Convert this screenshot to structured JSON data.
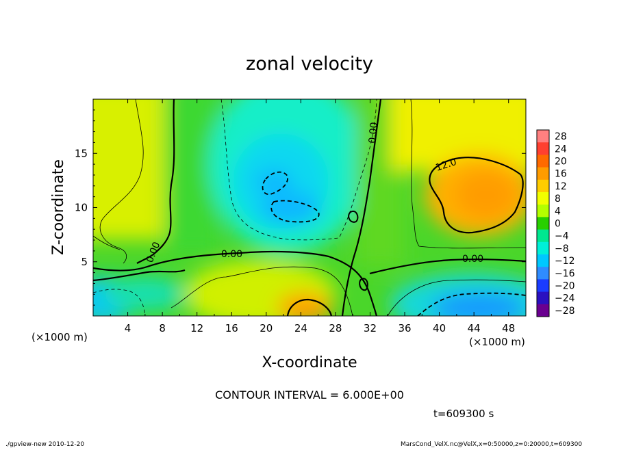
{
  "chart_data": {
    "type": "heatmap",
    "title": "zonal velocity",
    "xlabel": "X-coordinate",
    "ylabel": "Z-coordinate",
    "x_unit": "(×1000 m)",
    "x_unit_right": "(×1000 m)",
    "y_unit": "(×1000 m)",
    "xlim": [
      0,
      50
    ],
    "ylim": [
      0,
      20
    ],
    "x_ticks": [
      "4",
      "8",
      "12",
      "16",
      "20",
      "24",
      "28",
      "32",
      "36",
      "40",
      "44",
      "48"
    ],
    "y_ticks": [
      "5",
      "10",
      "15"
    ],
    "contour_interval_text": "CONTOUR INTERVAL = 6.000E+00",
    "contour_labels": [
      "0.00",
      "0.00",
      "0.00",
      "0.00",
      "12.0"
    ],
    "colorbar": {
      "labels": [
        "28",
        "24",
        "20",
        "16",
        "12",
        "8",
        "4",
        "0",
        "−4",
        "−8",
        "−12",
        "−16",
        "−20",
        "−24",
        "−28"
      ],
      "values": [
        28,
        24,
        20,
        16,
        12,
        8,
        4,
        0,
        -4,
        -8,
        -12,
        -16,
        -20,
        -24,
        -28
      ],
      "colors": [
        "#ff8080",
        "#ff4030",
        "#ff6a00",
        "#ff9c00",
        "#ffcc00",
        "#f2ff00",
        "#b4ff00",
        "#28d000",
        "#00e890",
        "#00f0d8",
        "#00c8ff",
        "#2f8cff",
        "#1a3cff",
        "#2a10c0",
        "#6a0090"
      ]
    },
    "time": "t=609300 s"
  },
  "footer": {
    "left": "./gpview-new  2010-12-20",
    "right": "MarsCond_VelX.nc@VelX,x=0:50000,z=0:20000,t=609300"
  }
}
